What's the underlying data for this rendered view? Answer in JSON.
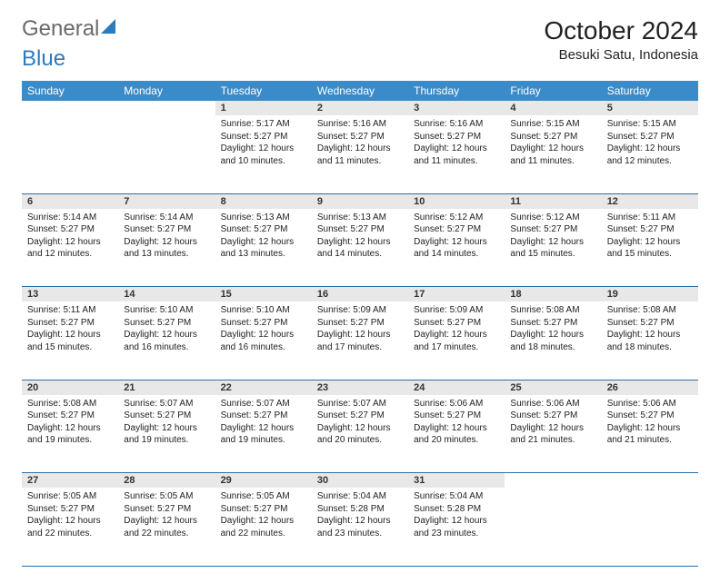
{
  "logo": {
    "text_gray": "General",
    "text_blue": "Blue"
  },
  "title": "October 2024",
  "location": "Besuki Satu, Indonesia",
  "colors": {
    "header_bg": "#3a8bc9",
    "header_text": "#ffffff",
    "daynum_bg": "#e8e8e8",
    "row_border": "#2a6fa8",
    "logo_gray": "#6a6a6a",
    "logo_blue": "#2a7bbf"
  },
  "day_headers": [
    "Sunday",
    "Monday",
    "Tuesday",
    "Wednesday",
    "Thursday",
    "Friday",
    "Saturday"
  ],
  "weeks": [
    [
      null,
      null,
      {
        "n": "1",
        "sr": "Sunrise: 5:17 AM",
        "ss": "Sunset: 5:27 PM",
        "dl": "Daylight: 12 hours and 10 minutes."
      },
      {
        "n": "2",
        "sr": "Sunrise: 5:16 AM",
        "ss": "Sunset: 5:27 PM",
        "dl": "Daylight: 12 hours and 11 minutes."
      },
      {
        "n": "3",
        "sr": "Sunrise: 5:16 AM",
        "ss": "Sunset: 5:27 PM",
        "dl": "Daylight: 12 hours and 11 minutes."
      },
      {
        "n": "4",
        "sr": "Sunrise: 5:15 AM",
        "ss": "Sunset: 5:27 PM",
        "dl": "Daylight: 12 hours and 11 minutes."
      },
      {
        "n": "5",
        "sr": "Sunrise: 5:15 AM",
        "ss": "Sunset: 5:27 PM",
        "dl": "Daylight: 12 hours and 12 minutes."
      }
    ],
    [
      {
        "n": "6",
        "sr": "Sunrise: 5:14 AM",
        "ss": "Sunset: 5:27 PM",
        "dl": "Daylight: 12 hours and 12 minutes."
      },
      {
        "n": "7",
        "sr": "Sunrise: 5:14 AM",
        "ss": "Sunset: 5:27 PM",
        "dl": "Daylight: 12 hours and 13 minutes."
      },
      {
        "n": "8",
        "sr": "Sunrise: 5:13 AM",
        "ss": "Sunset: 5:27 PM",
        "dl": "Daylight: 12 hours and 13 minutes."
      },
      {
        "n": "9",
        "sr": "Sunrise: 5:13 AM",
        "ss": "Sunset: 5:27 PM",
        "dl": "Daylight: 12 hours and 14 minutes."
      },
      {
        "n": "10",
        "sr": "Sunrise: 5:12 AM",
        "ss": "Sunset: 5:27 PM",
        "dl": "Daylight: 12 hours and 14 minutes."
      },
      {
        "n": "11",
        "sr": "Sunrise: 5:12 AM",
        "ss": "Sunset: 5:27 PM",
        "dl": "Daylight: 12 hours and 15 minutes."
      },
      {
        "n": "12",
        "sr": "Sunrise: 5:11 AM",
        "ss": "Sunset: 5:27 PM",
        "dl": "Daylight: 12 hours and 15 minutes."
      }
    ],
    [
      {
        "n": "13",
        "sr": "Sunrise: 5:11 AM",
        "ss": "Sunset: 5:27 PM",
        "dl": "Daylight: 12 hours and 15 minutes."
      },
      {
        "n": "14",
        "sr": "Sunrise: 5:10 AM",
        "ss": "Sunset: 5:27 PM",
        "dl": "Daylight: 12 hours and 16 minutes."
      },
      {
        "n": "15",
        "sr": "Sunrise: 5:10 AM",
        "ss": "Sunset: 5:27 PM",
        "dl": "Daylight: 12 hours and 16 minutes."
      },
      {
        "n": "16",
        "sr": "Sunrise: 5:09 AM",
        "ss": "Sunset: 5:27 PM",
        "dl": "Daylight: 12 hours and 17 minutes."
      },
      {
        "n": "17",
        "sr": "Sunrise: 5:09 AM",
        "ss": "Sunset: 5:27 PM",
        "dl": "Daylight: 12 hours and 17 minutes."
      },
      {
        "n": "18",
        "sr": "Sunrise: 5:08 AM",
        "ss": "Sunset: 5:27 PM",
        "dl": "Daylight: 12 hours and 18 minutes."
      },
      {
        "n": "19",
        "sr": "Sunrise: 5:08 AM",
        "ss": "Sunset: 5:27 PM",
        "dl": "Daylight: 12 hours and 18 minutes."
      }
    ],
    [
      {
        "n": "20",
        "sr": "Sunrise: 5:08 AM",
        "ss": "Sunset: 5:27 PM",
        "dl": "Daylight: 12 hours and 19 minutes."
      },
      {
        "n": "21",
        "sr": "Sunrise: 5:07 AM",
        "ss": "Sunset: 5:27 PM",
        "dl": "Daylight: 12 hours and 19 minutes."
      },
      {
        "n": "22",
        "sr": "Sunrise: 5:07 AM",
        "ss": "Sunset: 5:27 PM",
        "dl": "Daylight: 12 hours and 19 minutes."
      },
      {
        "n": "23",
        "sr": "Sunrise: 5:07 AM",
        "ss": "Sunset: 5:27 PM",
        "dl": "Daylight: 12 hours and 20 minutes."
      },
      {
        "n": "24",
        "sr": "Sunrise: 5:06 AM",
        "ss": "Sunset: 5:27 PM",
        "dl": "Daylight: 12 hours and 20 minutes."
      },
      {
        "n": "25",
        "sr": "Sunrise: 5:06 AM",
        "ss": "Sunset: 5:27 PM",
        "dl": "Daylight: 12 hours and 21 minutes."
      },
      {
        "n": "26",
        "sr": "Sunrise: 5:06 AM",
        "ss": "Sunset: 5:27 PM",
        "dl": "Daylight: 12 hours and 21 minutes."
      }
    ],
    [
      {
        "n": "27",
        "sr": "Sunrise: 5:05 AM",
        "ss": "Sunset: 5:27 PM",
        "dl": "Daylight: 12 hours and 22 minutes."
      },
      {
        "n": "28",
        "sr": "Sunrise: 5:05 AM",
        "ss": "Sunset: 5:27 PM",
        "dl": "Daylight: 12 hours and 22 minutes."
      },
      {
        "n": "29",
        "sr": "Sunrise: 5:05 AM",
        "ss": "Sunset: 5:27 PM",
        "dl": "Daylight: 12 hours and 22 minutes."
      },
      {
        "n": "30",
        "sr": "Sunrise: 5:04 AM",
        "ss": "Sunset: 5:28 PM",
        "dl": "Daylight: 12 hours and 23 minutes."
      },
      {
        "n": "31",
        "sr": "Sunrise: 5:04 AM",
        "ss": "Sunset: 5:28 PM",
        "dl": "Daylight: 12 hours and 23 minutes."
      },
      null,
      null
    ]
  ]
}
